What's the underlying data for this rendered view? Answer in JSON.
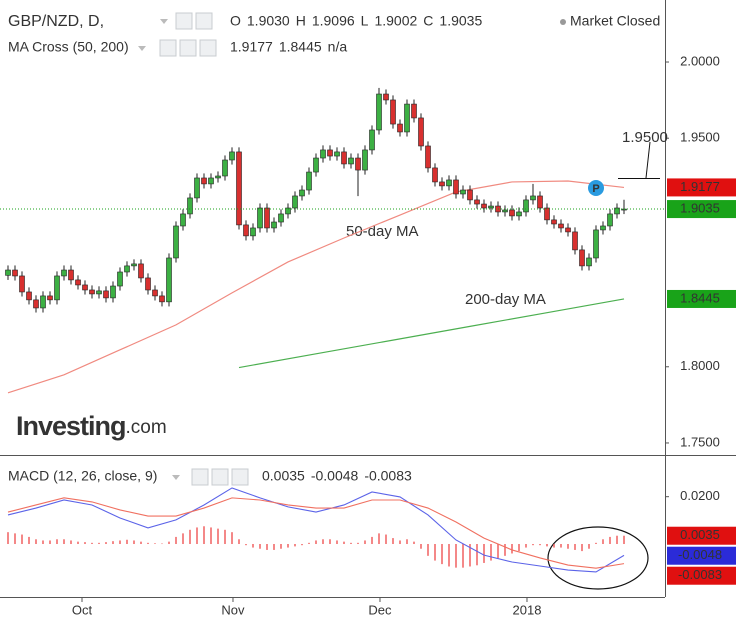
{
  "chart_data": [
    {
      "type": "candlestick",
      "symbol": "GBP/NZD, D,",
      "status": "Market Closed",
      "readout": [
        {
          "name": "O",
          "value": 1.903,
          "label": "1.9030"
        },
        {
          "name": "H",
          "value": 1.9096,
          "label": "1.9096"
        },
        {
          "name": "L",
          "value": 1.9002,
          "label": "1.9002"
        },
        {
          "name": "C",
          "value": 1.9035,
          "label": "1.9035"
        }
      ],
      "indicator": "MA Cross (50, 200)",
      "indicator_extra": "n/a",
      "logo": [
        "Investing",
        ".com"
      ],
      "xlim": [
        -1.1429,
        93.857
      ],
      "ylim": [
        1.7421,
        2.0407
      ],
      "yticks": [
        {
          "value": 2.0,
          "label": "2.0000"
        },
        {
          "value": 1.95,
          "label": "1.9500"
        },
        {
          "value": 1.8,
          "label": "1.8000"
        },
        {
          "value": 1.75,
          "label": "1.7500"
        }
      ],
      "up_color": "#3cb043",
      "down_color": "#d8302f",
      "open": [
        1.86,
        1.8635,
        1.8596,
        1.8491,
        1.8439,
        1.8386,
        1.8465,
        1.8439,
        1.8596,
        1.8635,
        1.857,
        1.8537,
        1.8504,
        1.8478,
        1.8498,
        1.8452,
        1.853,
        1.8622,
        1.8662,
        1.8675,
        1.8583,
        1.8504,
        1.8465,
        1.8426,
        1.8714,
        1.8924,
        1.9003,
        1.9108,
        1.9239,
        1.92,
        1.9239,
        1.9252,
        1.9357,
        1.941,
        1.8931,
        1.8859,
        1.8911,
        1.9042,
        1.8911,
        1.895,
        1.9003,
        1.9042,
        1.9121,
        1.916,
        1.9278,
        1.937,
        1.9423,
        1.9383,
        1.941,
        1.9331,
        1.937,
        1.9291,
        1.9423,
        1.9554,
        1.979,
        1.9751,
        1.9593,
        1.9541,
        1.9724,
        1.9633,
        1.9449,
        1.9305,
        1.9213,
        1.9187,
        1.9226,
        1.9134,
        1.916,
        1.9095,
        1.9068,
        1.9042,
        1.9055,
        1.9016,
        1.9029,
        1.899,
        1.9016,
        1.9095,
        1.9121,
        1.9042,
        1.8964,
        1.8937,
        1.8911,
        1.8885,
        1.8767,
        1.8662,
        1.8714,
        1.8898,
        1.8924,
        1.9003,
        1.903
      ],
      "high": [
        1.8665,
        1.8665,
        1.8626,
        1.8521,
        1.8469,
        1.8495,
        1.8495,
        1.8626,
        1.8665,
        1.8665,
        1.86,
        1.8567,
        1.8534,
        1.8528,
        1.8528,
        1.856,
        1.8652,
        1.8692,
        1.8705,
        1.8705,
        1.8613,
        1.8534,
        1.8495,
        1.8744,
        1.8954,
        1.9033,
        1.9138,
        1.9269,
        1.9269,
        1.9269,
        1.9282,
        1.9387,
        1.944,
        1.944,
        1.8961,
        1.8941,
        1.9072,
        1.9072,
        1.898,
        1.9033,
        1.9072,
        1.9151,
        1.919,
        1.9308,
        1.94,
        1.9453,
        1.9453,
        1.944,
        1.944,
        1.94,
        1.94,
        1.9453,
        1.9584,
        1.983,
        1.982,
        1.9781,
        1.9623,
        1.9754,
        1.9754,
        1.9663,
        1.9479,
        1.9335,
        1.9243,
        1.9256,
        1.9256,
        1.919,
        1.919,
        1.9125,
        1.9098,
        1.9085,
        1.9085,
        1.9059,
        1.9059,
        1.9046,
        1.9125,
        1.92,
        1.9151,
        1.9072,
        1.8994,
        1.8967,
        1.8941,
        1.8915,
        1.8797,
        1.8744,
        1.8928,
        1.8954,
        1.9033,
        1.9072,
        1.9096
      ],
      "low": [
        1.857,
        1.8566,
        1.8461,
        1.8409,
        1.8356,
        1.8356,
        1.8409,
        1.8409,
        1.8566,
        1.854,
        1.8507,
        1.8474,
        1.8448,
        1.8448,
        1.8422,
        1.8422,
        1.85,
        1.8592,
        1.8632,
        1.8553,
        1.8474,
        1.8435,
        1.8396,
        1.8396,
        1.8684,
        1.8894,
        1.8973,
        1.9078,
        1.917,
        1.917,
        1.9209,
        1.9222,
        1.9327,
        1.8901,
        1.8829,
        1.8829,
        1.8881,
        1.8881,
        1.8881,
        1.892,
        1.8973,
        1.9012,
        1.9091,
        1.913,
        1.9248,
        1.934,
        1.9353,
        1.9353,
        1.9301,
        1.9301,
        1.912,
        1.9261,
        1.9393,
        1.9524,
        1.9721,
        1.9563,
        1.9511,
        1.9511,
        1.9603,
        1.9419,
        1.9275,
        1.9183,
        1.9157,
        1.9157,
        1.9104,
        1.9104,
        1.9065,
        1.9038,
        1.9012,
        1.9012,
        1.8986,
        1.8986,
        1.896,
        1.896,
        1.8986,
        1.9065,
        1.9012,
        1.8934,
        1.8907,
        1.8881,
        1.8855,
        1.8737,
        1.8632,
        1.8632,
        1.8684,
        1.8868,
        1.8894,
        1.8973,
        1.9002
      ],
      "close": [
        1.8635,
        1.8596,
        1.8491,
        1.8439,
        1.8386,
        1.8465,
        1.8439,
        1.8596,
        1.8635,
        1.857,
        1.8537,
        1.8504,
        1.8478,
        1.8498,
        1.8452,
        1.853,
        1.8622,
        1.8662,
        1.8675,
        1.8583,
        1.8504,
        1.8465,
        1.8426,
        1.8714,
        1.8924,
        1.9003,
        1.9108,
        1.9239,
        1.92,
        1.9239,
        1.9252,
        1.9357,
        1.941,
        1.8931,
        1.8859,
        1.8911,
        1.9042,
        1.8911,
        1.895,
        1.9003,
        1.9042,
        1.9121,
        1.916,
        1.9278,
        1.937,
        1.9423,
        1.9383,
        1.941,
        1.9331,
        1.937,
        1.9291,
        1.9423,
        1.9554,
        1.979,
        1.9751,
        1.9593,
        1.9541,
        1.9724,
        1.9633,
        1.9449,
        1.9305,
        1.9213,
        1.9187,
        1.9226,
        1.9134,
        1.916,
        1.9095,
        1.9068,
        1.9042,
        1.9055,
        1.9016,
        1.9029,
        1.899,
        1.9016,
        1.9095,
        1.9121,
        1.9042,
        1.8964,
        1.8937,
        1.8911,
        1.8885,
        1.8767,
        1.8662,
        1.8714,
        1.8898,
        1.8924,
        1.9003,
        1.9042,
        1.9035
      ],
      "series": [
        {
          "name": "50-day MA",
          "color": "#f08a80",
          "x": [
            0,
            8,
            16,
            24,
            32,
            40,
            48,
            56,
            64,
            72,
            80,
            88
          ],
          "values": [
            1.7829,
            1.7947,
            1.8111,
            1.8275,
            1.8485,
            1.8688,
            1.8845,
            1.8996,
            1.9147,
            1.9213,
            1.9219,
            1.9177
          ]
        },
        {
          "name": "200-day MA",
          "color": "#4caf50",
          "x": [
            33,
            44,
            55,
            66,
            77,
            88
          ],
          "values": [
            1.7995,
            1.8085,
            1.8175,
            1.8265,
            1.8355,
            1.8445
          ]
        }
      ],
      "price_tags": [
        {
          "value": 1.9177,
          "label": "1.9177",
          "color": "#e01010"
        },
        {
          "value": 1.9035,
          "label": "1.9035",
          "color": "#19a319",
          "dotted": true
        },
        {
          "value": 1.8445,
          "label": "1.8445",
          "color": "#19a319"
        }
      ],
      "annotations": [
        {
          "value": 1.95,
          "label": "1.9500"
        }
      ]
    },
    {
      "type": "macd",
      "title": "MACD (12, 26, close, 9)",
      "xlim": [
        -1.1429,
        93.857
      ],
      "ylim": [
        -0.0224,
        0.0372
      ],
      "yticks": [
        {
          "value": 0.02,
          "label": "0.0200"
        }
      ],
      "xticks": [
        {
          "value": 10.57,
          "label": "Oct"
        },
        {
          "value": 32.14,
          "label": "Nov"
        },
        {
          "value": 53.14,
          "label": "Dec"
        },
        {
          "value": 74.14,
          "label": "2018"
        }
      ],
      "histogram": {
        "color": "#f06060",
        "values": [
          0.005,
          0.0045,
          0.004,
          0.003,
          0.002,
          0.0015,
          0.0015,
          0.002,
          0.002,
          0.0015,
          0.001,
          0.0008,
          0.0005,
          0.0005,
          0.0008,
          0.0012,
          0.0015,
          0.0018,
          0.0015,
          0.001,
          0.0005,
          0.0003,
          0.0002,
          0.001,
          0.003,
          0.0045,
          0.006,
          0.007,
          0.0075,
          0.007,
          0.0065,
          0.006,
          0.005,
          0.002,
          -0.0005,
          -0.0015,
          -0.002,
          -0.0025,
          -0.0025,
          -0.002,
          -0.0015,
          -0.001,
          -0.0005,
          0.0005,
          0.0015,
          0.002,
          0.002,
          0.0015,
          0.001,
          0.0005,
          0.0005,
          0.0015,
          0.003,
          0.0045,
          0.004,
          0.0025,
          0.0015,
          0.002,
          0.001,
          -0.002,
          -0.005,
          -0.007,
          -0.0085,
          -0.0095,
          -0.01,
          -0.01,
          -0.0095,
          -0.009,
          -0.008,
          -0.007,
          -0.006,
          -0.005,
          -0.004,
          -0.003,
          -0.0015,
          -0.0005,
          -0.0005,
          -0.001,
          -0.0015,
          -0.0015,
          -0.002,
          -0.0025,
          -0.003,
          -0.002,
          0.0005,
          0.002,
          0.003,
          0.0035,
          0.0035
        ]
      },
      "series": [
        {
          "color": "#5b63e8",
          "x": [
            0,
            4,
            8,
            12,
            16,
            20,
            24,
            28,
            32,
            36,
            40,
            44,
            48,
            52,
            56,
            60,
            64,
            68,
            72,
            76,
            80,
            84,
            88
          ],
          "values": [
            0.0123,
            0.0152,
            0.0186,
            0.0165,
            0.011,
            0.0068,
            0.0102,
            0.0165,
            0.0237,
            0.0195,
            0.0157,
            0.0135,
            0.0165,
            0.022,
            0.0199,
            0.0123,
            0.0017,
            -0.0047,
            -0.0076,
            -0.0093,
            -0.011,
            -0.0118,
            -0.0048
          ]
        },
        {
          "color": "#f07060",
          "x": [
            0,
            4,
            8,
            12,
            16,
            20,
            24,
            28,
            32,
            36,
            40,
            44,
            48,
            52,
            56,
            60,
            64,
            68,
            72,
            76,
            80,
            84,
            88
          ],
          "values": [
            0.0135,
            0.0165,
            0.0195,
            0.0178,
            0.0144,
            0.0118,
            0.0118,
            0.0152,
            0.0195,
            0.0186,
            0.0165,
            0.0152,
            0.0152,
            0.0186,
            0.0186,
            0.0152,
            0.0093,
            0.0025,
            -0.0025,
            -0.0059,
            -0.0089,
            -0.0102,
            -0.0083
          ]
        }
      ],
      "price_tags": [
        {
          "value": 0.0035,
          "label": "0.0035",
          "color": "#e01010"
        },
        {
          "value": -0.0048,
          "label": "-0.0048",
          "color": "#2b2bd8"
        },
        {
          "value": -0.0083,
          "label": "-0.0083",
          "color": "#e01010"
        }
      ]
    }
  ]
}
